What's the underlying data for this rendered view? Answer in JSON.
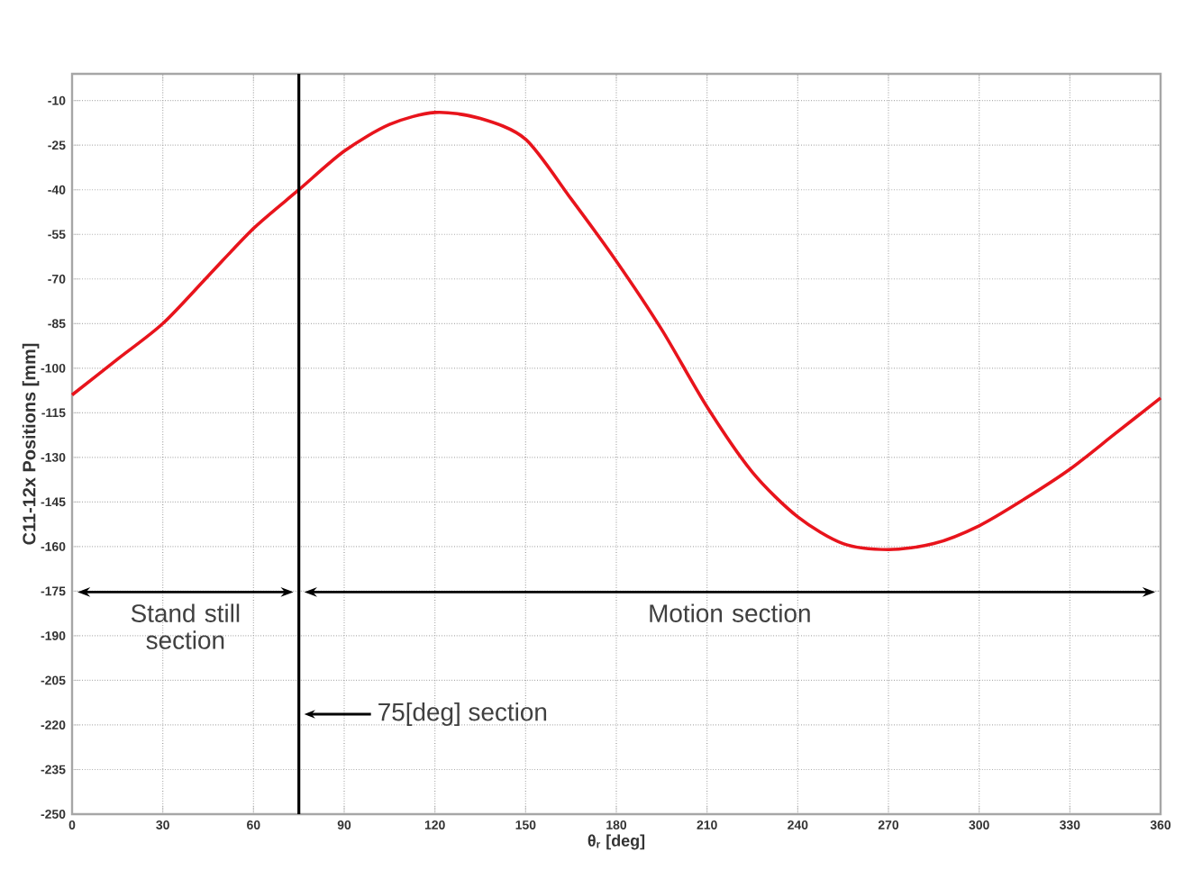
{
  "chart_data": {
    "type": "line",
    "xlabel": "θ$_{r}$ [deg]",
    "ylabel": "C11-12x  Positions [mm]",
    "x": [
      0,
      15,
      30,
      45,
      60,
      75,
      90,
      105,
      120,
      135,
      150,
      165,
      180,
      195,
      210,
      225,
      240,
      255,
      270,
      285,
      300,
      315,
      330,
      345,
      360
    ],
    "series": [
      {
        "color": "#e8141c",
        "values": [
          -109,
          -97,
          -85,
          -69,
          -53,
          -40,
          -27,
          -18,
          -14,
          -16,
          -23,
          -43,
          -64,
          -87,
          -113,
          -135,
          -150,
          -159,
          -161,
          -159,
          -153,
          -144,
          -134,
          -122,
          -110
        ]
      }
    ],
    "xlim": [
      0,
      360
    ],
    "xticks": [
      0,
      30,
      60,
      90,
      120,
      150,
      180,
      210,
      240,
      270,
      300,
      330,
      360
    ],
    "ylim": [
      -250,
      -1
    ],
    "yticks": [
      -10,
      -25,
      -40,
      -55,
      -70,
      -85,
      -100,
      -115,
      -130,
      -145,
      -160,
      -175,
      -190,
      -205,
      -220,
      -235,
      -250
    ],
    "grid": true,
    "marker": "none",
    "line_style": "solid",
    "ref_lines": [
      {
        "axis": "x",
        "value": 75,
        "label": "75[deg] section",
        "color": "#000000"
      }
    ],
    "annotations": [
      "Stand still section",
      "Motion section"
    ]
  }
}
